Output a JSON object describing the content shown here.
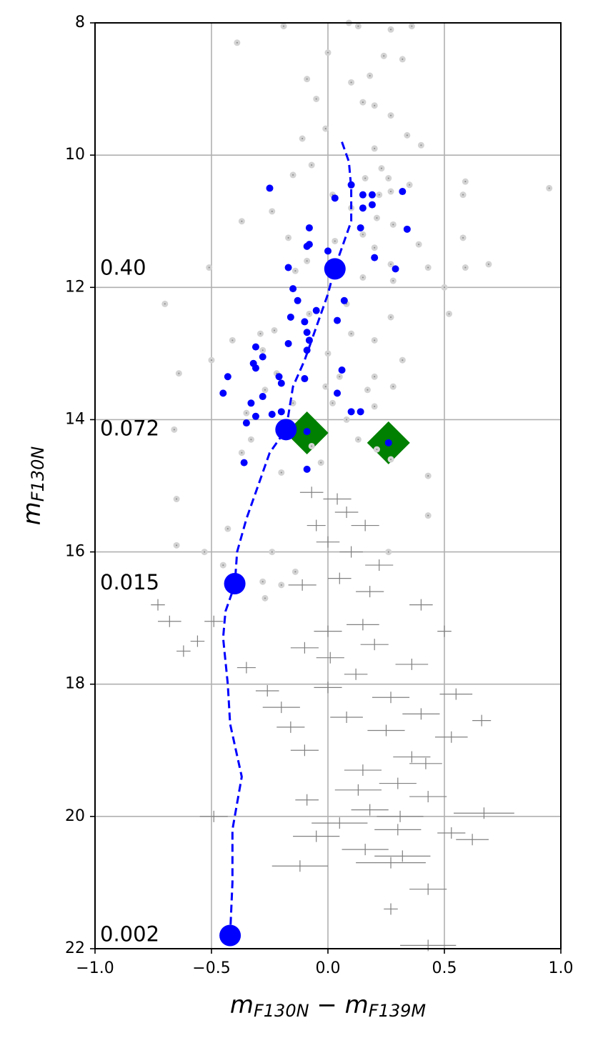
{
  "chart_data": {
    "type": "scatter",
    "xlabel": [
      "m",
      "F130N",
      " − m",
      "F139M"
    ],
    "ylabel": [
      "m",
      "F130N"
    ],
    "xlim": [
      -1.0,
      1.0
    ],
    "ylim": [
      22,
      8
    ],
    "xticks": [
      {
        "value": -1.0,
        "label": "−1.0"
      },
      {
        "value": -0.5,
        "label": "−0.5"
      },
      {
        "value": 0.0,
        "label": "0.0"
      },
      {
        "value": 0.5,
        "label": "0.5"
      },
      {
        "value": 1.0,
        "label": "1.0"
      }
    ],
    "yticks": [
      8,
      10,
      12,
      14,
      16,
      18,
      20,
      22
    ],
    "grid": true,
    "series": [
      {
        "marker": "diamond",
        "color": "#008000",
        "x": [
          -0.09,
          0.26
        ],
        "y": [
          14.2,
          14.35
        ]
      },
      {
        "marker": "halo",
        "color": "#d3d3d3",
        "x": [
          -0.39,
          -0.19,
          0.09,
          0.13,
          0.27,
          0.36,
          0.0,
          0.24,
          0.32,
          -0.09,
          0.1,
          0.18,
          -0.05,
          0.15,
          0.2,
          0.27,
          -0.01,
          -0.11,
          0.34,
          0.2,
          0.4,
          -0.07,
          0.23,
          -0.15,
          0.16,
          0.26,
          0.35,
          0.59,
          0.95,
          0.02,
          0.22,
          0.27,
          0.58,
          -0.24,
          0.1,
          0.21,
          -0.37,
          0.15,
          0.28,
          -0.17,
          0.03,
          0.2,
          0.39,
          0.58,
          -0.51,
          -0.09,
          0.27,
          0.43,
          0.59,
          0.69,
          -0.14,
          0.15,
          0.28,
          -0.7,
          0.5,
          0.52,
          -0.08,
          0.08,
          0.27,
          -0.29,
          -0.23,
          0.1,
          0.2,
          -0.41,
          -0.28,
          0.0,
          0.32,
          -0.5,
          -0.64,
          -0.22,
          0.05,
          0.2,
          -0.27,
          -0.01,
          0.17,
          0.28,
          -0.15,
          0.02,
          0.2,
          -0.35,
          0.08,
          -0.66,
          -0.33,
          -0.07,
          0.13,
          -0.37,
          0.21,
          0.27,
          -0.03,
          -0.2,
          0.43,
          -0.65,
          0.43,
          -0.43,
          -0.65,
          -0.53,
          -0.24,
          0.26,
          -0.45,
          -0.14,
          -0.28,
          -0.2,
          -0.27
        ],
        "y": [
          8.3,
          8.05,
          8.0,
          8.05,
          8.1,
          8.05,
          8.45,
          8.5,
          8.55,
          8.85,
          8.9,
          8.8,
          9.15,
          9.2,
          9.25,
          9.4,
          9.6,
          9.75,
          9.7,
          9.9,
          9.85,
          10.15,
          10.2,
          10.3,
          10.35,
          10.35,
          10.45,
          10.4,
          10.5,
          10.6,
          10.6,
          10.55,
          10.6,
          10.85,
          10.8,
          10.95,
          11.0,
          11.2,
          11.05,
          11.25,
          11.3,
          11.4,
          11.35,
          11.25,
          11.7,
          11.6,
          11.65,
          11.7,
          11.7,
          11.65,
          11.75,
          11.85,
          11.9,
          12.25,
          12.0,
          12.4,
          12.4,
          12.25,
          12.45,
          12.7,
          12.65,
          12.7,
          12.8,
          12.8,
          12.95,
          13.0,
          13.1,
          13.1,
          13.3,
          13.3,
          13.35,
          13.35,
          13.55,
          13.5,
          13.55,
          13.5,
          13.75,
          13.75,
          13.8,
          13.9,
          14.0,
          14.15,
          14.3,
          14.4,
          14.3,
          14.5,
          14.45,
          14.6,
          14.65,
          14.8,
          14.85,
          15.2,
          15.45,
          15.65,
          15.9,
          16.0,
          16.0,
          16.0,
          16.2,
          16.3,
          16.45,
          16.5,
          16.7
        ]
      },
      {
        "marker": "errorbar",
        "color": "#808080",
        "x": [
          -0.07,
          0.04,
          0.08,
          -0.05,
          0.16,
          0.0,
          0.1,
          0.22,
          0.05,
          -0.11,
          0.18,
          0.4,
          -0.73,
          -0.68,
          -0.49,
          0.0,
          0.15,
          0.5,
          -0.1,
          0.2,
          -0.62,
          -0.56,
          0.01,
          0.36,
          -0.35,
          0.12,
          -0.26,
          0.0,
          0.27,
          0.55,
          -0.2,
          0.08,
          0.4,
          0.66,
          -0.16,
          0.25,
          0.53,
          -0.1,
          0.36,
          0.42,
          0.15,
          0.3,
          0.13,
          -0.09,
          0.43,
          0.18,
          -0.49,
          0.31,
          0.67,
          0.05,
          -0.05,
          0.3,
          0.53,
          0.62,
          0.16,
          0.32,
          -0.12,
          0.27,
          0.43,
          0.27,
          0.43
        ],
        "y": [
          15.1,
          15.2,
          15.4,
          15.6,
          15.6,
          15.85,
          16.0,
          16.2,
          16.4,
          16.5,
          16.6,
          16.8,
          16.8,
          17.05,
          17.05,
          17.2,
          17.1,
          17.2,
          17.45,
          17.4,
          17.5,
          17.35,
          17.6,
          17.7,
          17.75,
          17.85,
          18.1,
          18.05,
          18.2,
          18.15,
          18.35,
          18.5,
          18.45,
          18.55,
          18.65,
          18.7,
          18.8,
          19.0,
          19.1,
          19.2,
          19.3,
          19.5,
          19.6,
          19.75,
          19.7,
          19.9,
          20.0,
          20.0,
          19.95,
          20.1,
          20.3,
          20.2,
          20.25,
          20.35,
          20.5,
          20.6,
          20.75,
          20.7,
          21.1,
          21.4,
          21.95
        ],
        "xerr": [
          0.05,
          0.06,
          0.05,
          0.04,
          0.06,
          0.05,
          0.05,
          0.06,
          0.05,
          0.06,
          0.06,
          0.05,
          0.03,
          0.05,
          0.04,
          0.06,
          0.07,
          0.03,
          0.06,
          0.06,
          0.03,
          0.03,
          0.06,
          0.07,
          0.04,
          0.05,
          0.05,
          0.06,
          0.08,
          0.07,
          0.08,
          0.07,
          0.08,
          0.04,
          0.06,
          0.08,
          0.07,
          0.06,
          0.08,
          0.07,
          0.08,
          0.08,
          0.1,
          0.05,
          0.08,
          0.08,
          0.06,
          0.1,
          0.13,
          0.12,
          0.1,
          0.1,
          0.06,
          0.07,
          0.1,
          0.12,
          0.12,
          0.15,
          0.08,
          0.03,
          0.12
        ]
      },
      {
        "marker": "dot",
        "color": "#0000ff",
        "x": [
          -0.25,
          0.03,
          0.1,
          0.15,
          0.19,
          0.32,
          0.15,
          0.19,
          -0.08,
          0.14,
          0.34,
          -0.09,
          -0.08,
          0.0,
          0.2,
          -0.17,
          0.29,
          -0.15,
          -0.13,
          0.07,
          -0.05,
          -0.16,
          0.04,
          -0.1,
          -0.09,
          -0.08,
          -0.31,
          -0.17,
          -0.09,
          -0.28,
          -0.32,
          -0.31,
          -0.43,
          -0.21,
          -0.2,
          -0.1,
          0.06,
          -0.28,
          -0.45,
          -0.33,
          0.04,
          -0.31,
          -0.35,
          -0.2,
          -0.24,
          0.1,
          0.14,
          -0.09,
          0.26,
          -0.36,
          -0.09
        ],
        "y": [
          10.5,
          10.65,
          10.45,
          10.6,
          10.6,
          10.55,
          10.8,
          10.75,
          11.1,
          11.1,
          11.12,
          11.38,
          11.35,
          11.45,
          11.55,
          11.7,
          11.72,
          12.02,
          12.2,
          12.2,
          12.35,
          12.45,
          12.5,
          12.52,
          12.68,
          12.8,
          12.9,
          12.85,
          12.95,
          13.05,
          13.15,
          13.22,
          13.35,
          13.35,
          13.45,
          13.38,
          13.25,
          13.65,
          13.6,
          13.75,
          13.6,
          13.95,
          14.05,
          13.88,
          13.92,
          13.88,
          13.88,
          14.18,
          14.35,
          14.65,
          14.75
        ]
      },
      {
        "marker": "dashed-line",
        "color": "#0000ff",
        "x": [
          0.06,
          0.09,
          0.1,
          0.1,
          0.07,
          0.03,
          0.0,
          -0.05,
          -0.1,
          -0.15,
          -0.18,
          -0.25,
          -0.3,
          -0.35,
          -0.39,
          -0.4,
          -0.44,
          -0.45,
          -0.43,
          -0.42,
          -0.37,
          -0.41,
          -0.41,
          -0.42
        ],
        "y": [
          9.8,
          10.1,
          10.5,
          11.0,
          11.3,
          11.7,
          12.1,
          12.6,
          13.1,
          13.5,
          14.15,
          14.5,
          15.0,
          15.5,
          16.0,
          16.5,
          16.9,
          17.3,
          18.0,
          18.6,
          19.4,
          20.2,
          21.0,
          21.8
        ]
      },
      {
        "marker": "big",
        "color": "#0000ff",
        "x": [
          0.03,
          -0.18,
          -0.4,
          -0.42
        ],
        "y": [
          11.72,
          14.15,
          16.48,
          21.8
        ],
        "labels": [
          "0.40",
          "0.072",
          "0.015",
          "0.002"
        ]
      }
    ]
  }
}
